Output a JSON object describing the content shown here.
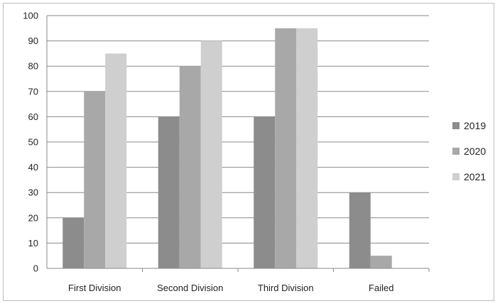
{
  "chart_data": {
    "type": "bar",
    "categories": [
      "First Division",
      "Second Division",
      "Third Division",
      "Failed"
    ],
    "series": [
      {
        "name": "2019",
        "color": "#8c8c8c",
        "values": [
          20,
          60,
          60,
          30
        ]
      },
      {
        "name": "2020",
        "color": "#a8a8a8",
        "values": [
          70,
          80,
          95,
          5
        ]
      },
      {
        "name": "2021",
        "color": "#cfcfcf",
        "values": [
          85,
          90,
          95,
          0
        ]
      }
    ],
    "ylim": [
      0,
      100
    ],
    "yticks": [
      0,
      10,
      20,
      30,
      40,
      50,
      60,
      70,
      80,
      90,
      100
    ],
    "grid": true,
    "legend": "right"
  }
}
